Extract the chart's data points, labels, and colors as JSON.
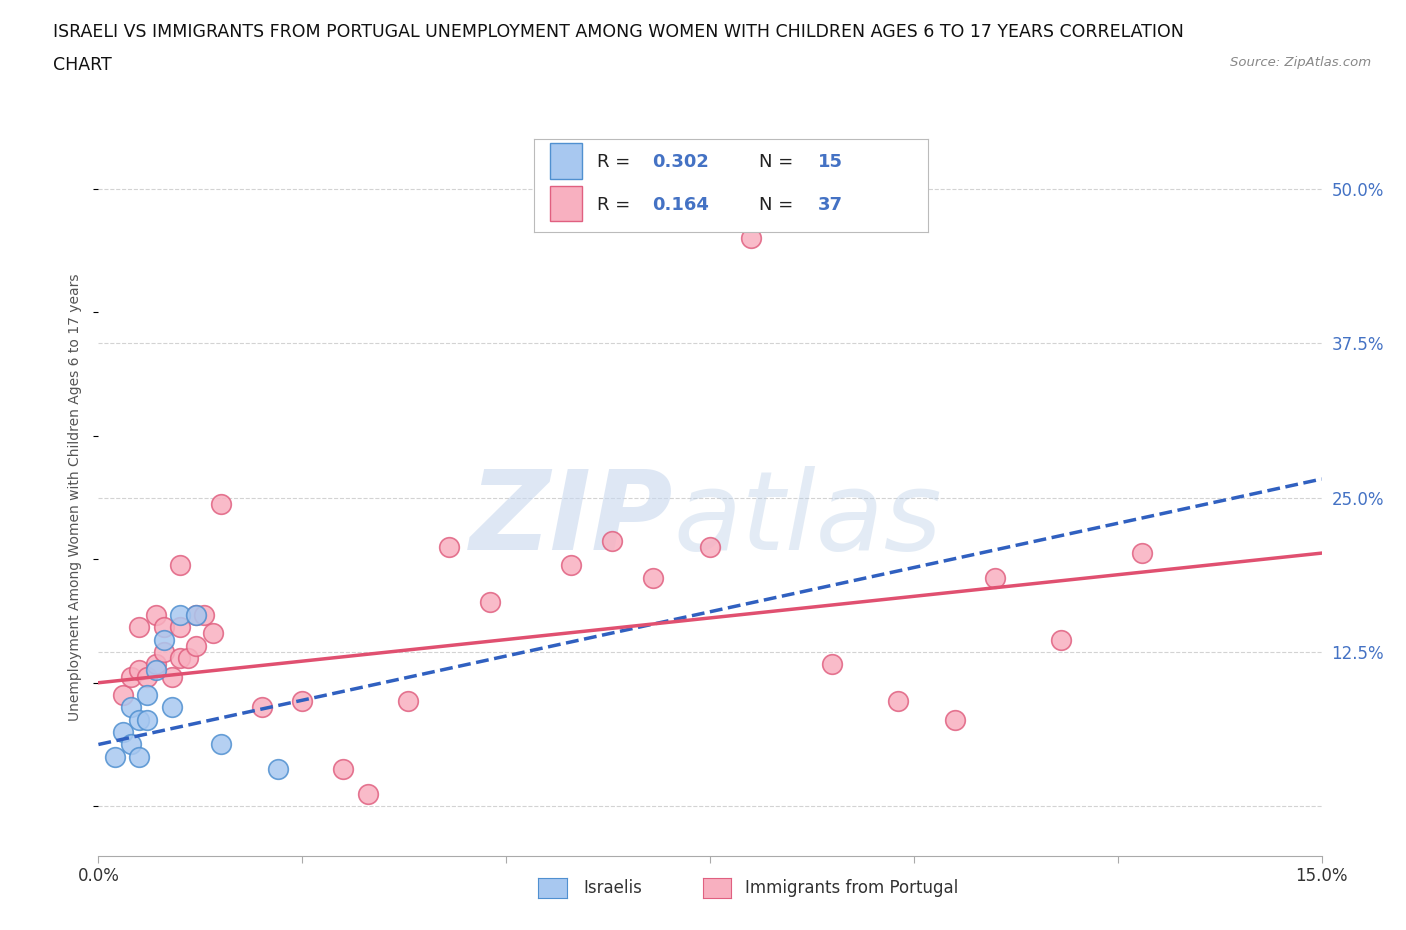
{
  "title_line1": "ISRAELI VS IMMIGRANTS FROM PORTUGAL UNEMPLOYMENT AMONG WOMEN WITH CHILDREN AGES 6 TO 17 YEARS CORRELATION",
  "title_line2": "CHART",
  "source_text": "Source: ZipAtlas.com",
  "ylabel": "Unemployment Among Women with Children Ages 6 to 17 years",
  "xlim": [
    0.0,
    0.15
  ],
  "ylim": [
    -0.04,
    0.54
  ],
  "yticks_right": [
    0.0,
    0.125,
    0.25,
    0.375,
    0.5
  ],
  "ytick_labels_right": [
    "",
    "12.5%",
    "25.0%",
    "37.5%",
    "50.0%"
  ],
  "grid_color": "#c8c8c8",
  "background_color": "#ffffff",
  "israelis_color": "#a8c8f0",
  "portugal_color": "#f8b0c0",
  "israelis_edge_color": "#5090d0",
  "portugal_edge_color": "#e06080",
  "israelis_line_color": "#3060c0",
  "portugal_line_color": "#e05070",
  "legend_R1": "0.302",
  "legend_N1": "15",
  "legend_R2": "0.164",
  "legend_N2": "37",
  "israelis_x": [
    0.002,
    0.003,
    0.004,
    0.004,
    0.005,
    0.005,
    0.006,
    0.006,
    0.007,
    0.008,
    0.009,
    0.01,
    0.012,
    0.015,
    0.022
  ],
  "israelis_y": [
    0.04,
    0.06,
    0.05,
    0.08,
    0.07,
    0.04,
    0.07,
    0.09,
    0.11,
    0.135,
    0.08,
    0.155,
    0.155,
    0.05,
    0.03
  ],
  "portugal_x": [
    0.003,
    0.004,
    0.005,
    0.005,
    0.006,
    0.007,
    0.007,
    0.008,
    0.008,
    0.009,
    0.01,
    0.01,
    0.01,
    0.011,
    0.012,
    0.012,
    0.013,
    0.014,
    0.015,
    0.02,
    0.025,
    0.03,
    0.033,
    0.038,
    0.043,
    0.048,
    0.058,
    0.063,
    0.068,
    0.075,
    0.08,
    0.09,
    0.098,
    0.105,
    0.11,
    0.118,
    0.128
  ],
  "portugal_y": [
    0.09,
    0.105,
    0.11,
    0.145,
    0.105,
    0.115,
    0.155,
    0.125,
    0.145,
    0.105,
    0.12,
    0.145,
    0.195,
    0.12,
    0.13,
    0.155,
    0.155,
    0.14,
    0.245,
    0.08,
    0.085,
    0.03,
    0.01,
    0.085,
    0.21,
    0.165,
    0.195,
    0.215,
    0.185,
    0.21,
    0.46,
    0.115,
    0.085,
    0.07,
    0.185,
    0.135,
    0.205
  ],
  "isr_trend_x0": 0.0,
  "isr_trend_x1": 0.15,
  "isr_trend_y0": 0.05,
  "isr_trend_y1": 0.265,
  "por_trend_x0": 0.0,
  "por_trend_x1": 0.15,
  "por_trend_y0": 0.1,
  "por_trend_y1": 0.205
}
